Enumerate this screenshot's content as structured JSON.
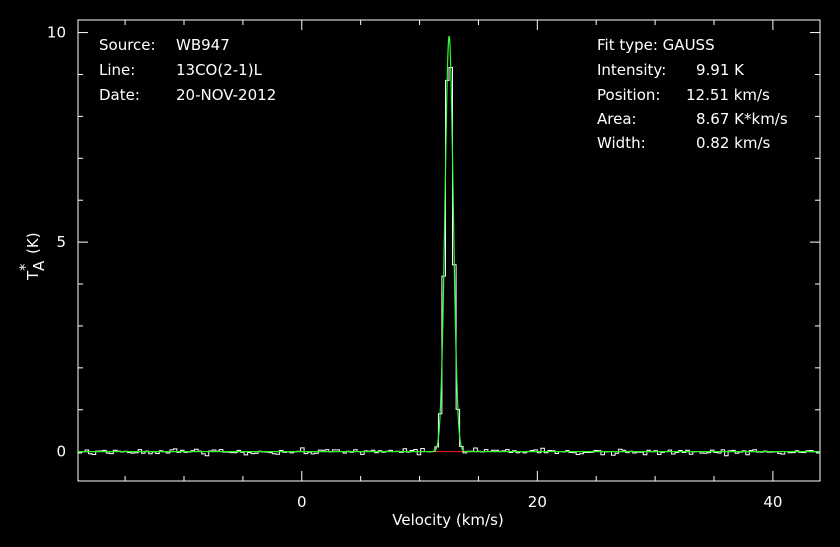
{
  "chart_data": {
    "type": "line",
    "xlabel": "Velocity (km/s)",
    "ylabel_main": "T",
    "ylabel_sub": "A",
    "ylabel_sup": "*",
    "ylabel_unit": "(K)",
    "xlim": [
      -19.0,
      44.0
    ],
    "ylim": [
      -0.7,
      10.3
    ],
    "xticks": [
      0,
      20,
      40
    ],
    "yticks": [
      0,
      5,
      10
    ],
    "grid": false,
    "colors": {
      "background": "#000000",
      "axes": "#ffffff",
      "spectrum": "#ffffff",
      "fit": "#33ff33",
      "baseline": "#ff2020"
    },
    "info_left": [
      {
        "key": "Source:",
        "value": "WB947"
      },
      {
        "key": "Line:",
        "value": "13CO(2-1)L"
      },
      {
        "key": "Date:",
        "value": "20-NOV-2012"
      }
    ],
    "info_right_title": "Fit type: GAUSS",
    "info_right": [
      {
        "key": "Intensity:",
        "value": "9.91 K"
      },
      {
        "key": "Position:",
        "value": "12.51 km/s"
      },
      {
        "key": "Area:",
        "value": "8.67 K*km/s"
      },
      {
        "key": "Width:",
        "value": "0.82 km/s"
      }
    ],
    "fit": {
      "amplitude": 9.91,
      "center": 12.51,
      "fwhm": 0.82
    },
    "baseline_range": [
      10.5,
      15.0
    ],
    "channel_width": 0.3,
    "noise_rms": 0.05
  }
}
